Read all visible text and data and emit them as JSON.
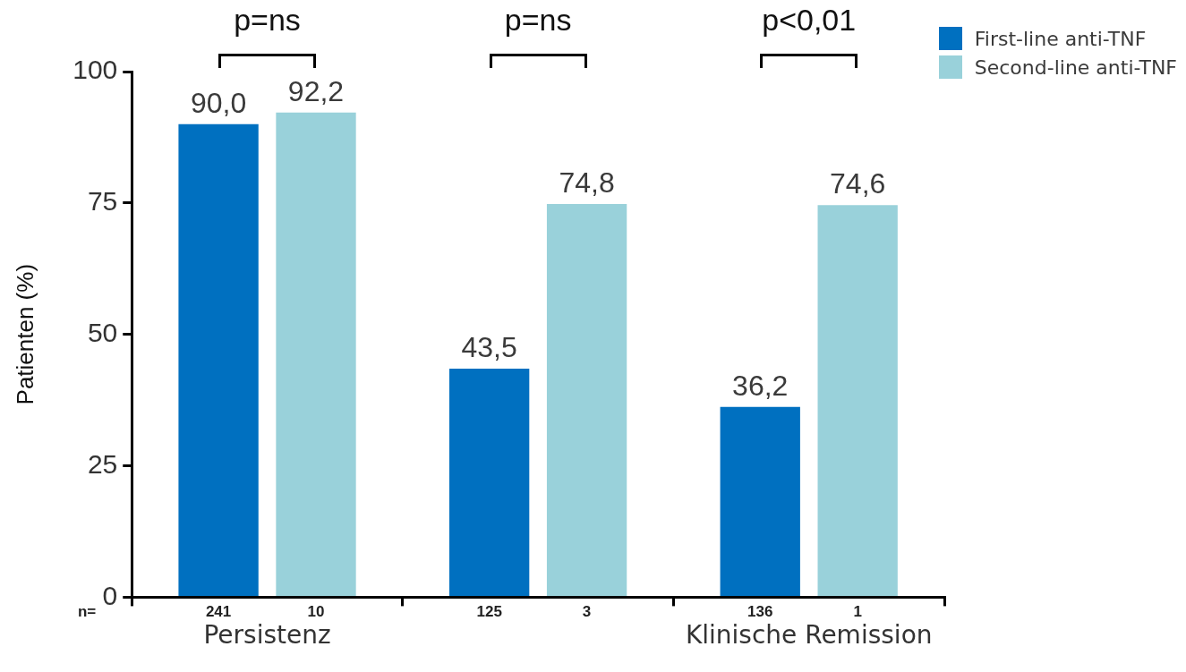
{
  "chart_data": {
    "type": "bar",
    "ylabel": "Patienten (%)",
    "categories": [
      "Persistenz",
      null,
      "Klinische Remission"
    ],
    "series": [
      {
        "name": "First-line anti-TNF",
        "color": "#0070c0",
        "values": [
          90.0,
          43.5,
          36.2
        ],
        "value_labels": [
          "90,0",
          "43,5",
          "36,2"
        ]
      },
      {
        "name": "Second-line anti-TNF",
        "color": "#99d1da",
        "values": [
          92.2,
          74.8,
          74.6
        ],
        "value_labels": [
          "92,2",
          "74,8",
          "74,6"
        ]
      }
    ],
    "ylim": [
      0,
      100
    ],
    "yticks": [
      0,
      25,
      50,
      75,
      100
    ],
    "legend": "top right",
    "annotations": [
      "p=ns",
      "p=ns",
      "p<0,01",
      "n=",
      "241",
      "10",
      "125",
      "3",
      "136",
      "1"
    ]
  }
}
